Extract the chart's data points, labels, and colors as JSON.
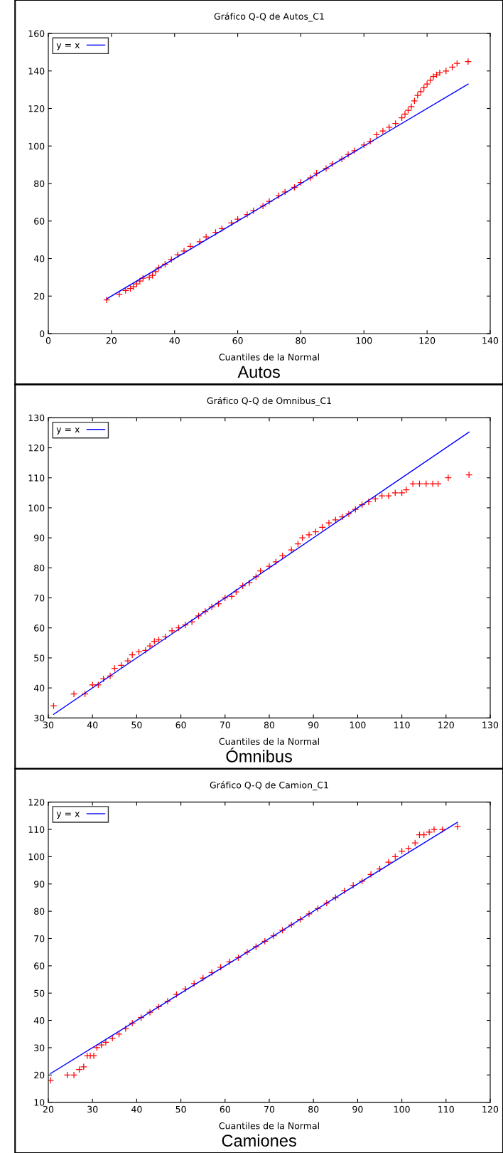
{
  "chart_data": [
    {
      "type": "scatter",
      "title": "Gráfico Q-Q de Autos_C1",
      "xlabel": "Cuantiles de la Normal",
      "annotations": [
        "Autos"
      ],
      "xlim": [
        0,
        140
      ],
      "xticks": [
        0,
        20,
        40,
        60,
        80,
        100,
        120,
        140
      ],
      "ylim": [
        0,
        160
      ],
      "yticks": [
        0,
        20,
        40,
        60,
        80,
        100,
        120,
        140,
        160
      ],
      "grid": false,
      "legend": "top left",
      "series": [
        {
          "color": "#ff0000",
          "marker": "cross",
          "x": [
            18.5,
            22.5,
            24.5,
            26,
            27,
            28,
            29,
            30,
            32,
            33,
            34,
            35,
            37,
            39,
            41,
            43,
            45,
            48,
            50,
            53,
            55,
            58,
            60,
            63,
            65,
            68,
            70,
            73,
            75,
            78,
            80,
            83,
            85,
            88,
            90,
            93,
            95,
            97,
            100,
            102,
            104,
            106,
            108,
            110,
            112,
            113,
            114,
            115,
            116,
            117,
            118,
            119,
            120,
            121,
            122,
            123,
            124,
            126,
            128,
            129.5,
            133
          ],
          "values": [
            18,
            21,
            23,
            24,
            25,
            26.5,
            28,
            29.5,
            30,
            31,
            33,
            35,
            37,
            39.5,
            42,
            44,
            46.5,
            49,
            51.5,
            54,
            56,
            59,
            61,
            63.5,
            65.5,
            68,
            70.5,
            73.5,
            75.5,
            78,
            80.5,
            83,
            85.5,
            88,
            90.5,
            93,
            95.5,
            97.5,
            100.5,
            102.5,
            106,
            108,
            110,
            112,
            115,
            117,
            119,
            121,
            124,
            127,
            129,
            131,
            133,
            135,
            137,
            138,
            139,
            140,
            142,
            144,
            145
          ]
        },
        {
          "type": "line",
          "name": "y = x",
          "color": "#0000ff",
          "marker": "none",
          "x": [
            18.5,
            133
          ],
          "values": [
            18.5,
            133
          ]
        }
      ]
    },
    {
      "type": "scatter",
      "title": "Gráfico Q-Q de Omnibus_C1",
      "xlabel": "Cuantiles de la Normal",
      "annotations": [
        "Ómnibus"
      ],
      "xlim": [
        30,
        130
      ],
      "xticks": [
        30,
        40,
        50,
        60,
        70,
        80,
        90,
        100,
        110,
        120,
        130
      ],
      "ylim": [
        30,
        130
      ],
      "yticks": [
        30,
        40,
        50,
        60,
        70,
        80,
        90,
        100,
        110,
        120,
        130
      ],
      "grid": false,
      "legend": "top left",
      "series": [
        {
          "color": "#ff0000",
          "marker": "cross",
          "x": [
            31.2,
            35.8,
            38.3,
            40,
            41.3,
            42.5,
            44,
            45,
            46.5,
            48,
            49,
            50.5,
            52,
            53,
            54,
            55,
            56.5,
            58,
            59.5,
            61,
            62.5,
            64,
            65.5,
            67,
            68.5,
            70,
            71.5,
            72.5,
            74,
            75.5,
            77,
            78,
            80,
            81.5,
            83,
            85,
            86.5,
            87.5,
            89,
            90.5,
            92,
            93.5,
            95,
            96.5,
            98,
            99.5,
            101,
            102.5,
            104,
            105.5,
            107,
            108.5,
            110,
            111,
            112.5,
            114,
            115.5,
            117,
            118.2,
            120.5,
            125.2
          ],
          "values": [
            34,
            38,
            38,
            41,
            41,
            43,
            44,
            46.5,
            47.5,
            49,
            51,
            52,
            52.5,
            54,
            55.5,
            56,
            57,
            59,
            60,
            61,
            62,
            64,
            65.5,
            67,
            68,
            70,
            70.5,
            72,
            74,
            75,
            77,
            79,
            80.5,
            82,
            84,
            86,
            88,
            90,
            91,
            92,
            93.5,
            95,
            96,
            97,
            98,
            99.5,
            101,
            102,
            103,
            104,
            104,
            105,
            105,
            106,
            108,
            108,
            108,
            108,
            108,
            110,
            111
          ]
        },
        {
          "type": "line",
          "name": "y = x",
          "color": "#0000ff",
          "marker": "none",
          "x": [
            31.2,
            125.2
          ],
          "values": [
            31.2,
            125.2
          ]
        }
      ]
    },
    {
      "type": "scatter",
      "title": "Gráfico Q-Q de Camion_C1",
      "xlabel": "Cuantiles de la Normal",
      "annotations": [
        "Camiones"
      ],
      "xlim": [
        20,
        120
      ],
      "xticks": [
        20,
        30,
        40,
        50,
        60,
        70,
        80,
        90,
        100,
        110,
        120
      ],
      "ylim": [
        10,
        120
      ],
      "yticks": [
        10,
        20,
        30,
        40,
        50,
        60,
        70,
        80,
        90,
        100,
        110,
        120
      ],
      "grid": false,
      "legend": "top left",
      "series": [
        {
          "color": "#ff0000",
          "marker": "cross",
          "x": [
            20.5,
            24.3,
            25.8,
            27,
            28,
            28.8,
            29.5,
            30.3,
            31,
            32,
            33,
            34.5,
            36,
            37.5,
            39,
            41,
            43,
            45,
            47,
            49,
            51,
            53,
            55,
            57,
            59,
            61,
            63,
            65,
            67,
            69,
            71,
            73,
            75,
            77,
            79,
            81,
            83,
            85,
            87,
            89,
            91,
            93,
            95,
            97,
            98.5,
            100,
            101.5,
            103,
            104,
            105,
            106.2,
            107.3,
            109.2,
            112.6
          ],
          "values": [
            18,
            20,
            20,
            22,
            23,
            27,
            27,
            27,
            30,
            31,
            32,
            33.5,
            35,
            37,
            39,
            41,
            43,
            45,
            47,
            49.5,
            51.5,
            53.5,
            55.5,
            57.5,
            59.5,
            61.5,
            63,
            65,
            67,
            69,
            71,
            73,
            75,
            77,
            79,
            81,
            83,
            85,
            87.5,
            89.5,
            91,
            93.5,
            95.5,
            98,
            100,
            102,
            103,
            105,
            108,
            108,
            109,
            110,
            110,
            111
          ]
        },
        {
          "type": "line",
          "name": "y = x",
          "color": "#0000ff",
          "marker": "none",
          "x": [
            20.5,
            112.6
          ],
          "values": [
            20.5,
            112.6
          ]
        }
      ]
    }
  ]
}
